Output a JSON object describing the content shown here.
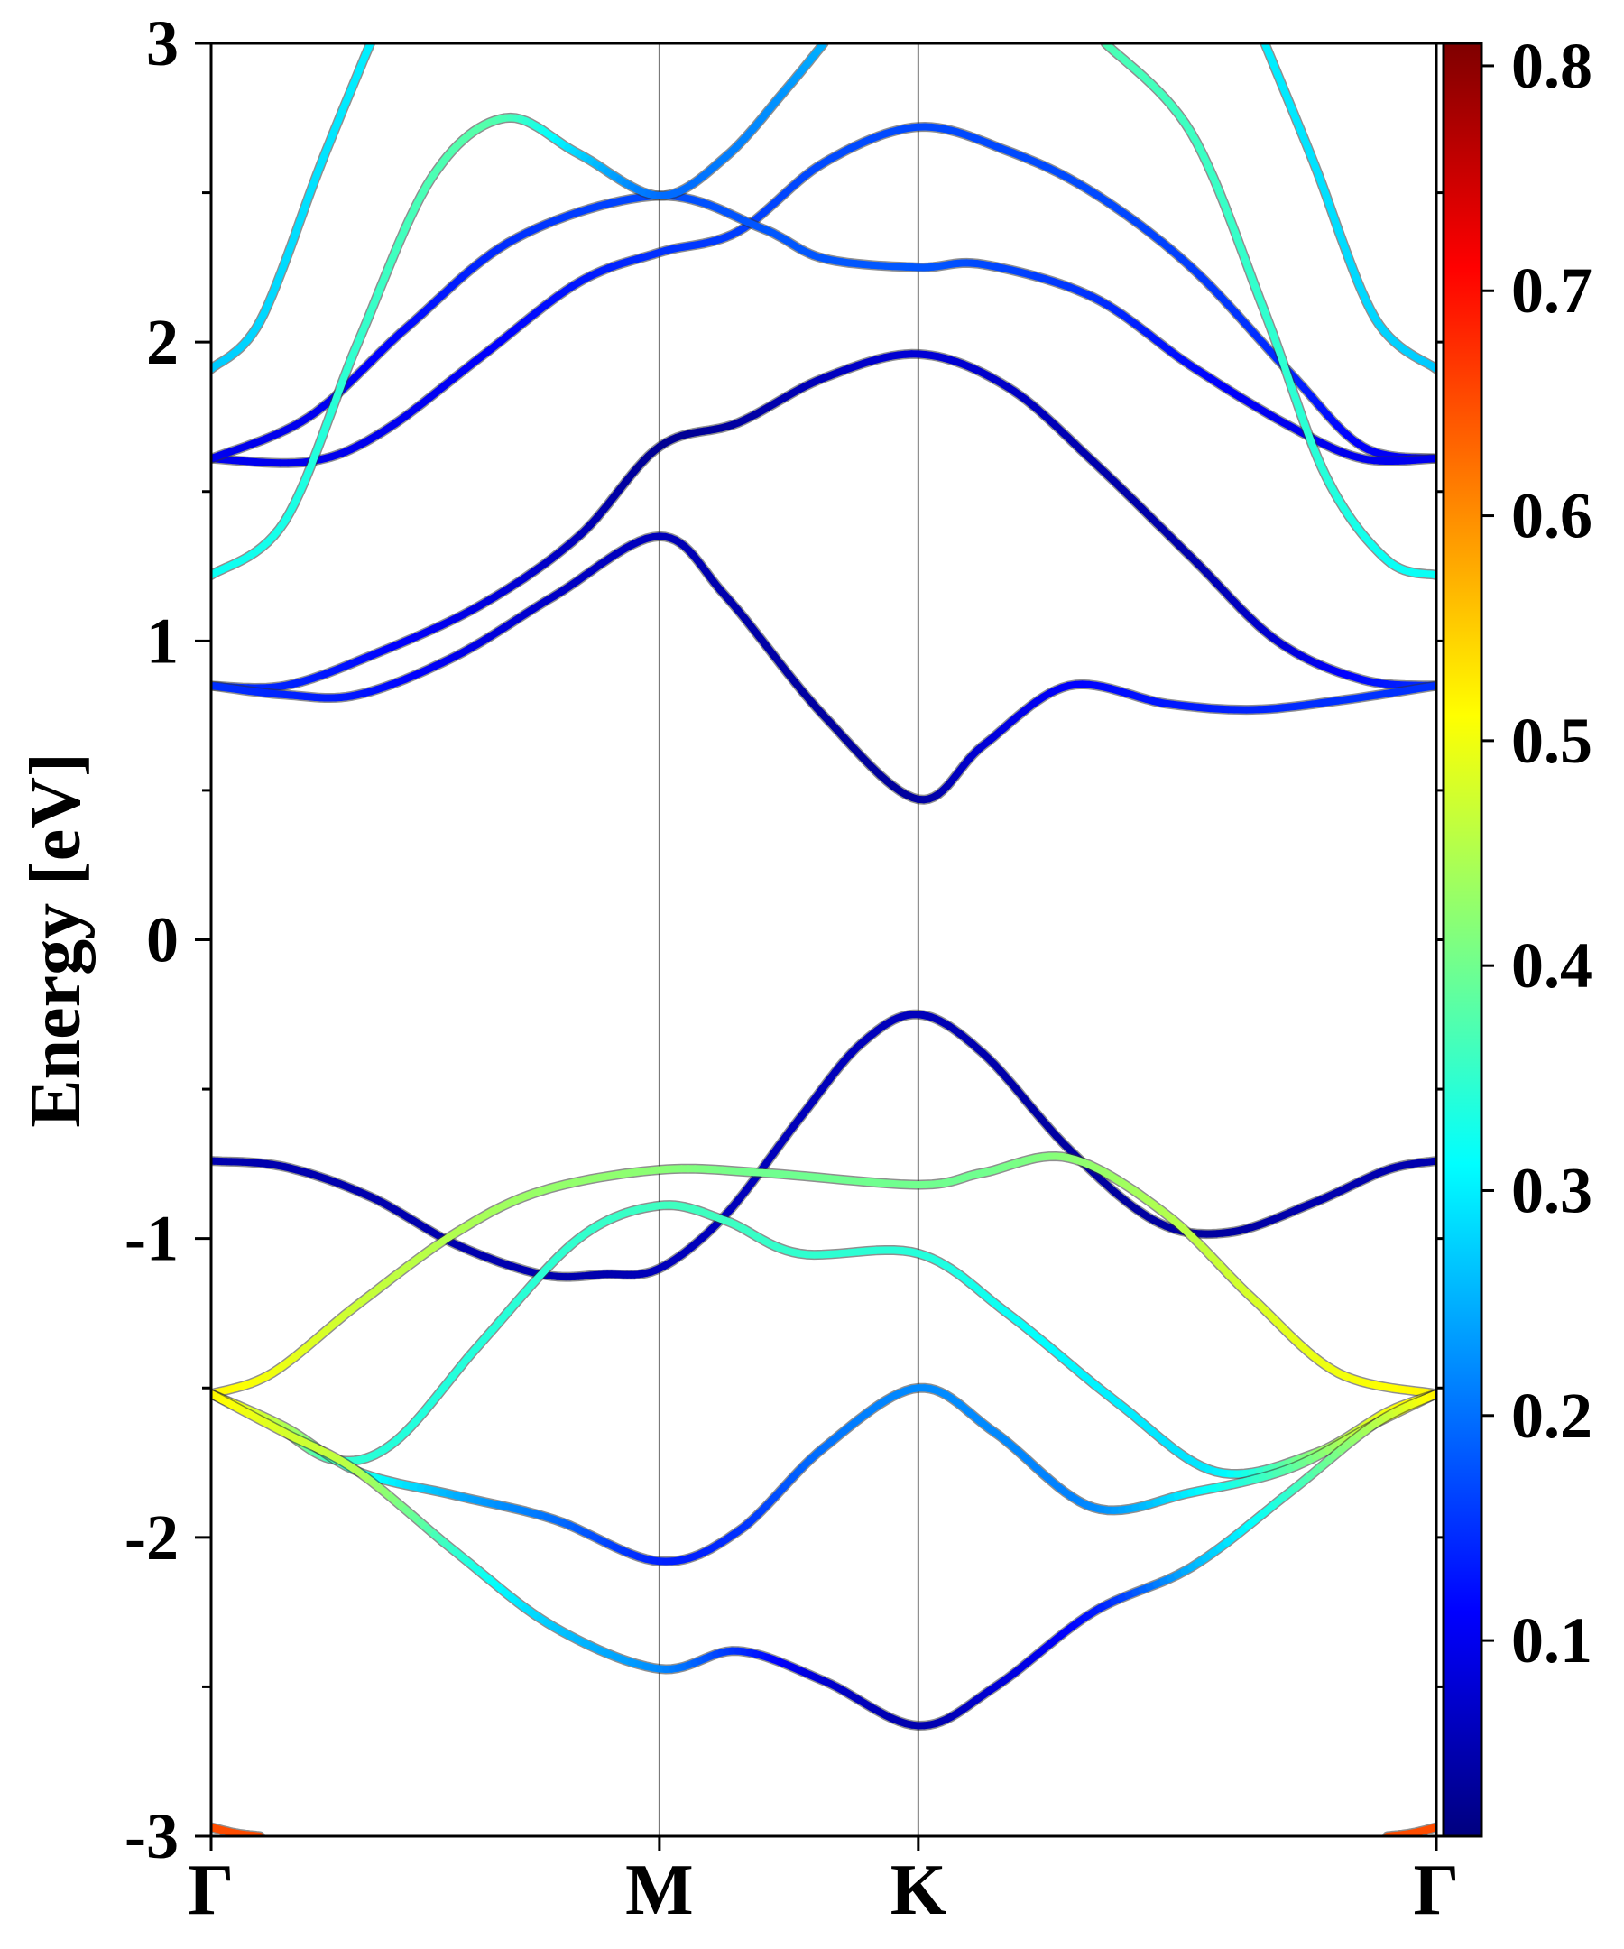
{
  "chart_data": {
    "type": "line",
    "ylabel": "Energy [eV]",
    "ylim": [
      -3,
      3
    ],
    "ytick_labels": [
      "-3",
      "-2",
      "-1",
      "0",
      "1",
      "2",
      "3"
    ],
    "k_labels": [
      "Γ",
      "M",
      "K",
      "Γ"
    ],
    "k_positions": [
      0,
      0.3659,
      0.5772,
      1.0
    ],
    "colorbar": {
      "colormap": "jet",
      "range": [
        0.013,
        0.81
      ],
      "tick_values": [
        0.1,
        0.2,
        0.3,
        0.4,
        0.5,
        0.6,
        0.7,
        0.8
      ],
      "tick_labels": [
        "0.1",
        "0.2",
        "0.3",
        "0.4",
        "0.5",
        "0.6",
        "0.7",
        "0.8"
      ]
    },
    "grid": false,
    "series": [
      {
        "points": [
          [
            0,
            -0.74
          ],
          [
            0.06,
            -0.76
          ],
          [
            0.13,
            -0.86
          ],
          [
            0.2,
            -1.02
          ],
          [
            0.27,
            -1.12
          ],
          [
            0.32,
            -1.12
          ],
          [
            0.3659,
            -1.1
          ],
          [
            0.42,
            -0.92
          ],
          [
            0.48,
            -0.6
          ],
          [
            0.53,
            -0.35
          ],
          [
            0.5772,
            -0.25
          ],
          [
            0.63,
            -0.38
          ],
          [
            0.7,
            -0.7
          ],
          [
            0.77,
            -0.94
          ],
          [
            0.83,
            -0.98
          ],
          [
            0.9,
            -0.88
          ],
          [
            0.96,
            -0.77
          ],
          [
            1.0,
            -0.74
          ]
        ],
        "weights": [
          0.05,
          0.05,
          0.05,
          0.05,
          0.05,
          0.05,
          0.06,
          0.06,
          0.06,
          0.06,
          0.06,
          0.05,
          0.04,
          0.04,
          0.04,
          0.05,
          0.05,
          0.05
        ]
      },
      {
        "points": [
          [
            0,
            -1.52
          ],
          [
            0.05,
            -1.45
          ],
          [
            0.12,
            -1.22
          ],
          [
            0.2,
            -0.98
          ],
          [
            0.27,
            -0.84
          ],
          [
            0.3659,
            -0.77
          ],
          [
            0.45,
            -0.78
          ],
          [
            0.5772,
            -0.82
          ],
          [
            0.63,
            -0.78
          ],
          [
            0.7,
            -0.73
          ],
          [
            0.78,
            -0.92
          ],
          [
            0.85,
            -1.2
          ],
          [
            0.92,
            -1.45
          ],
          [
            1.0,
            -1.52
          ]
        ],
        "weights": [
          0.52,
          0.5,
          0.47,
          0.45,
          0.43,
          0.42,
          0.4,
          0.4,
          0.4,
          0.42,
          0.45,
          0.48,
          0.5,
          0.52
        ]
      },
      {
        "points": [
          [
            0,
            -1.52
          ],
          [
            0.05,
            -1.62
          ],
          [
            0.1,
            -1.74
          ],
          [
            0.15,
            -1.68
          ],
          [
            0.22,
            -1.35
          ],
          [
            0.3,
            -1.0
          ],
          [
            0.3659,
            -0.89
          ],
          [
            0.42,
            -0.94
          ],
          [
            0.48,
            -1.05
          ],
          [
            0.5772,
            -1.05
          ],
          [
            0.65,
            -1.25
          ],
          [
            0.74,
            -1.55
          ],
          [
            0.82,
            -1.78
          ],
          [
            0.9,
            -1.72
          ],
          [
            0.96,
            -1.58
          ],
          [
            1.0,
            -1.52
          ]
        ],
        "weights": [
          0.52,
          0.45,
          0.36,
          0.34,
          0.34,
          0.35,
          0.36,
          0.36,
          0.35,
          0.34,
          0.32,
          0.3,
          0.3,
          0.42,
          0.5,
          0.52
        ]
      },
      {
        "points": [
          [
            0,
            -1.52
          ],
          [
            0.06,
            -1.63
          ],
          [
            0.12,
            -1.78
          ],
          [
            0.2,
            -1.86
          ],
          [
            0.28,
            -1.94
          ],
          [
            0.3659,
            -2.08
          ],
          [
            0.43,
            -1.98
          ],
          [
            0.5,
            -1.7
          ],
          [
            0.5772,
            -1.5
          ],
          [
            0.64,
            -1.65
          ],
          [
            0.72,
            -1.9
          ],
          [
            0.8,
            -1.85
          ],
          [
            0.88,
            -1.77
          ],
          [
            0.95,
            -1.62
          ],
          [
            1.0,
            -1.52
          ]
        ],
        "weights": [
          0.52,
          0.45,
          0.34,
          0.25,
          0.2,
          0.14,
          0.15,
          0.2,
          0.22,
          0.22,
          0.22,
          0.3,
          0.38,
          0.48,
          0.52
        ]
      },
      {
        "points": [
          [
            0,
            -1.52
          ],
          [
            0.06,
            -1.65
          ],
          [
            0.12,
            -1.78
          ],
          [
            0.2,
            -2.05
          ],
          [
            0.28,
            -2.3
          ],
          [
            0.3659,
            -2.44
          ],
          [
            0.43,
            -2.38
          ],
          [
            0.5,
            -2.48
          ],
          [
            0.5772,
            -2.63
          ],
          [
            0.64,
            -2.5
          ],
          [
            0.72,
            -2.25
          ],
          [
            0.8,
            -2.1
          ],
          [
            0.88,
            -1.85
          ],
          [
            0.95,
            -1.62
          ],
          [
            1.0,
            -1.52
          ]
        ],
        "weights": [
          0.52,
          0.48,
          0.45,
          0.35,
          0.27,
          0.22,
          0.15,
          0.08,
          0.05,
          0.08,
          0.13,
          0.25,
          0.35,
          0.45,
          0.52
        ]
      },
      {
        "points": [
          [
            0,
            0.85
          ],
          [
            0.06,
            0.85
          ],
          [
            0.13,
            0.95
          ],
          [
            0.22,
            1.12
          ],
          [
            0.3,
            1.35
          ],
          [
            0.3659,
            1.65
          ],
          [
            0.43,
            1.73
          ],
          [
            0.5,
            1.88
          ],
          [
            0.5772,
            1.96
          ],
          [
            0.65,
            1.85
          ],
          [
            0.72,
            1.6
          ],
          [
            0.8,
            1.28
          ],
          [
            0.87,
            1.0
          ],
          [
            0.94,
            0.87
          ],
          [
            1.0,
            0.85
          ]
        ],
        "weights": [
          0.15,
          0.14,
          0.12,
          0.09,
          0.06,
          0.03,
          0.04,
          0.06,
          0.08,
          0.07,
          0.05,
          0.05,
          0.08,
          0.12,
          0.15
        ]
      },
      {
        "points": [
          [
            0,
            0.85
          ],
          [
            0.06,
            0.82
          ],
          [
            0.12,
            0.82
          ],
          [
            0.2,
            0.95
          ],
          [
            0.28,
            1.15
          ],
          [
            0.3659,
            1.35
          ],
          [
            0.42,
            1.15
          ],
          [
            0.5,
            0.75
          ],
          [
            0.5772,
            0.47
          ],
          [
            0.63,
            0.65
          ],
          [
            0.7,
            0.85
          ],
          [
            0.78,
            0.79
          ],
          [
            0.85,
            0.77
          ],
          [
            0.92,
            0.8
          ],
          [
            1.0,
            0.85
          ]
        ],
        "weights": [
          0.15,
          0.14,
          0.13,
          0.1,
          0.07,
          0.06,
          0.05,
          0.04,
          0.04,
          0.08,
          0.11,
          0.13,
          0.14,
          0.15,
          0.15
        ]
      },
      {
        "points": [
          [
            0,
            1.61
          ],
          [
            0.08,
            1.6
          ],
          [
            0.14,
            1.7
          ],
          [
            0.22,
            1.95
          ],
          [
            0.3,
            2.2
          ],
          [
            0.3659,
            2.3
          ],
          [
            0.43,
            2.37
          ],
          [
            0.5,
            2.6
          ],
          [
            0.5772,
            2.72
          ],
          [
            0.65,
            2.64
          ],
          [
            0.72,
            2.5
          ],
          [
            0.8,
            2.25
          ],
          [
            0.88,
            1.9
          ],
          [
            0.94,
            1.65
          ],
          [
            1.0,
            1.61
          ]
        ],
        "weights": [
          0.1,
          0.1,
          0.1,
          0.11,
          0.13,
          0.15,
          0.16,
          0.17,
          0.17,
          0.17,
          0.17,
          0.16,
          0.14,
          0.11,
          0.1
        ]
      },
      {
        "points": [
          [
            0,
            1.61
          ],
          [
            0.08,
            1.75
          ],
          [
            0.16,
            2.05
          ],
          [
            0.25,
            2.35
          ],
          [
            0.3659,
            2.49
          ],
          [
            0.45,
            2.38
          ],
          [
            0.5,
            2.28
          ],
          [
            0.5772,
            2.25
          ],
          [
            0.63,
            2.26
          ],
          [
            0.72,
            2.15
          ],
          [
            0.8,
            1.92
          ],
          [
            0.88,
            1.72
          ],
          [
            0.94,
            1.61
          ],
          [
            1.0,
            1.61
          ]
        ],
        "weights": [
          0.1,
          0.1,
          0.12,
          0.15,
          0.17,
          0.18,
          0.18,
          0.18,
          0.17,
          0.15,
          0.12,
          0.1,
          0.1,
          0.1
        ]
      },
      {
        "points": [
          [
            0,
            1.22
          ],
          [
            0.06,
            1.4
          ],
          [
            0.12,
            2.0
          ],
          [
            0.18,
            2.55
          ],
          [
            0.24,
            2.75
          ],
          [
            0.3,
            2.63
          ],
          [
            0.3659,
            2.49
          ],
          [
            0.42,
            2.62
          ],
          [
            0.47,
            2.85
          ],
          [
            0.5,
            3.0
          ]
        ],
        "weights": [
          0.32,
          0.33,
          0.35,
          0.37,
          0.37,
          0.28,
          0.2,
          0.21,
          0.23,
          0.25
        ]
      },
      {
        "points": [
          [
            0.73,
            3.0
          ],
          [
            0.8,
            2.7
          ],
          [
            0.86,
            2.1
          ],
          [
            0.91,
            1.55
          ],
          [
            0.96,
            1.27
          ],
          [
            1.0,
            1.22
          ]
        ],
        "weights": [
          0.37,
          0.36,
          0.35,
          0.34,
          0.32,
          0.32
        ]
      },
      {
        "points": [
          [
            0,
            1.91
          ],
          [
            0.04,
            2.07
          ],
          [
            0.09,
            2.6
          ],
          [
            0.13,
            3.0
          ]
        ],
        "weights": [
          0.27,
          0.28,
          0.29,
          0.3
        ]
      },
      {
        "points": [
          [
            0.86,
            3.0
          ],
          [
            0.9,
            2.6
          ],
          [
            0.95,
            2.08
          ],
          [
            1.0,
            1.91
          ]
        ],
        "weights": [
          0.3,
          0.29,
          0.28,
          0.27
        ]
      },
      {
        "points": [
          [
            0,
            -2.97
          ],
          [
            0.02,
            -2.99
          ],
          [
            0.04,
            -3.0
          ]
        ],
        "weights": [
          0.65,
          0.65,
          0.65
        ]
      },
      {
        "points": [
          [
            0.96,
            -3.0
          ],
          [
            0.98,
            -2.99
          ],
          [
            1.0,
            -2.97
          ]
        ],
        "weights": [
          0.65,
          0.65,
          0.65
        ]
      }
    ]
  }
}
